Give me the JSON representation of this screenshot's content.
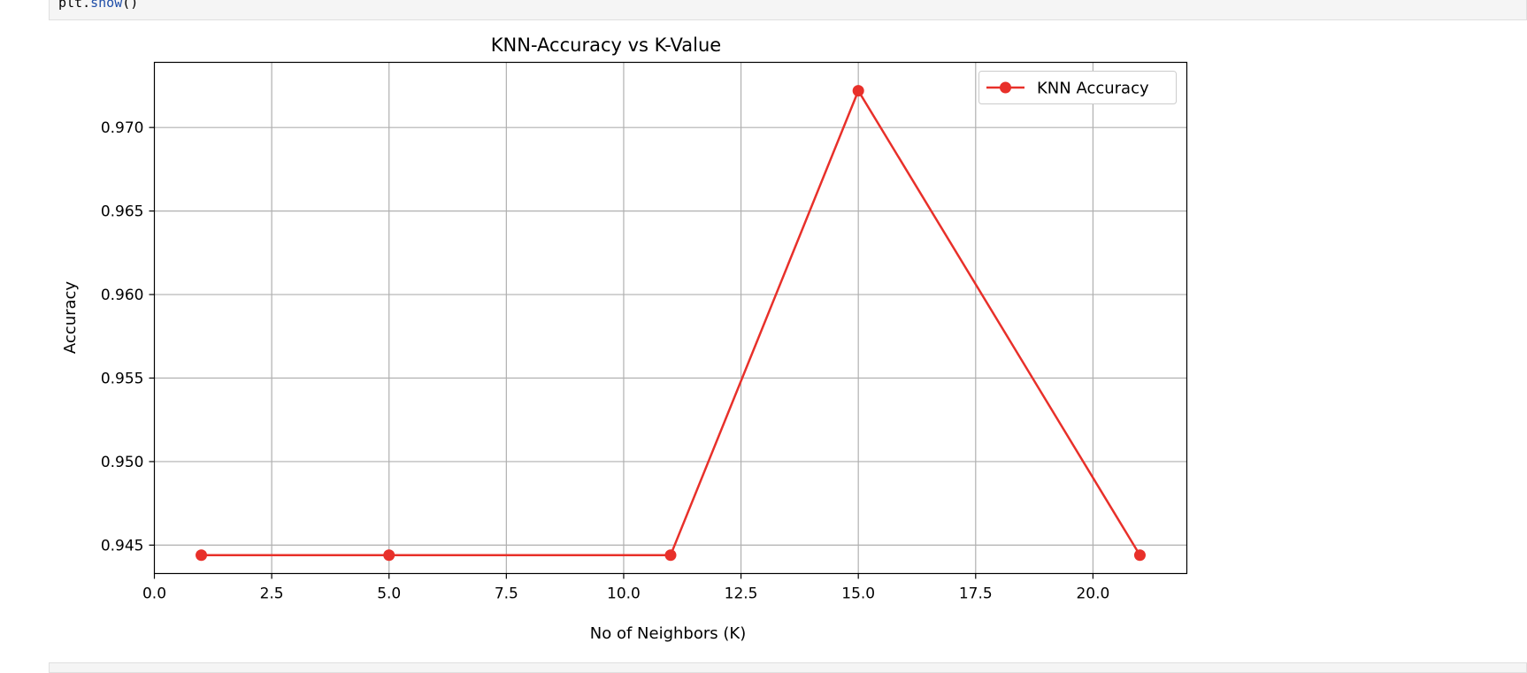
{
  "notebook": {
    "code_object": "plt.",
    "code_function": "show",
    "code_suffix": "()"
  },
  "chart_data": {
    "type": "line",
    "title": "KNN-Accuracy vs K-Value",
    "xlabel": "No of Neighbors (K)",
    "ylabel": "Accuracy",
    "xlim": [
      0.0,
      22.0
    ],
    "ylim": [
      0.9433,
      0.9739
    ],
    "xticks": [
      0.0,
      2.5,
      5.0,
      7.5,
      10.0,
      12.5,
      15.0,
      17.5,
      20.0
    ],
    "xtick_labels": [
      "0.0",
      "2.5",
      "5.0",
      "7.5",
      "10.0",
      "12.5",
      "15.0",
      "17.5",
      "20.0"
    ],
    "yticks": [
      0.945,
      0.95,
      0.955,
      0.96,
      0.965,
      0.97
    ],
    "ytick_labels": [
      "0.945",
      "0.950",
      "0.955",
      "0.960",
      "0.965",
      "0.970"
    ],
    "grid": true,
    "legend_position": "upper right",
    "series": [
      {
        "name": "KNN Accuracy",
        "color": "#e8302a",
        "marker": "circle",
        "x": [
          1,
          5,
          11,
          15,
          21
        ],
        "y": [
          0.9444,
          0.9444,
          0.9444,
          0.9722,
          0.9444
        ]
      }
    ]
  }
}
